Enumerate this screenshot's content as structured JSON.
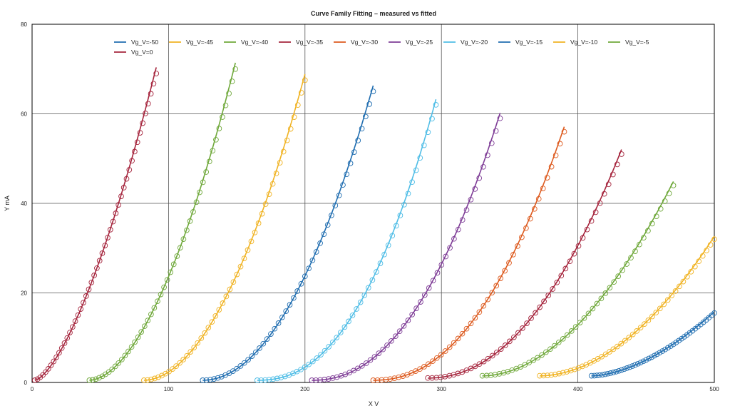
{
  "chart_data": {
    "type": "scatter",
    "title": "Curve Family Fitting – measured vs fitted",
    "xlabel": "X V",
    "ylabel": "Y mA",
    "xlim": [
      0,
      500
    ],
    "ylim": [
      0,
      80
    ],
    "x_ticks": [
      0,
      100,
      200,
      300,
      400,
      500
    ],
    "y_ticks": [
      0,
      20,
      40,
      60,
      80
    ],
    "grid": true,
    "legend_position": "top",
    "markers": "open circles = measured, lines = fitted",
    "series": [
      {
        "name": "Vg_V=-50",
        "color": "#1f6db0",
        "x_start": 410,
        "x_end": 500,
        "y_start": 1.5,
        "y_end": 15.5,
        "power": 1.7
      },
      {
        "name": "Vg_V=-45",
        "color": "#f0b323",
        "x_start": 372,
        "x_end": 500,
        "y_start": 1.5,
        "y_end": 32,
        "power": 1.9
      },
      {
        "name": "Vg_V=-40",
        "color": "#6fa83a",
        "x_start": 330,
        "x_end": 470,
        "y_start": 1.5,
        "y_end": 44,
        "power": 1.9
      },
      {
        "name": "Vg_V=-35",
        "color": "#a5243c",
        "x_start": 290,
        "x_end": 432,
        "y_start": 1.0,
        "y_end": 51,
        "power": 2.1
      },
      {
        "name": "Vg_V=-30",
        "color": "#dd5a1e",
        "x_start": 250,
        "x_end": 390,
        "y_start": 0.5,
        "y_end": 56,
        "power": 2.2
      },
      {
        "name": "Vg_V=-25",
        "color": "#7e3c96",
        "x_start": 205,
        "x_end": 343,
        "y_start": 0.5,
        "y_end": 59,
        "power": 2.2
      },
      {
        "name": "Vg_V=-20",
        "color": "#4fbde6",
        "x_start": 165,
        "x_end": 296,
        "y_start": 0.5,
        "y_end": 62,
        "power": 2.3
      },
      {
        "name": "Vg_V=-15",
        "color": "#1f6db0",
        "x_start": 125,
        "x_end": 250,
        "y_start": 0.5,
        "y_end": 65,
        "power": 2.0
      },
      {
        "name": "Vg_V=-10",
        "color": "#f0b323",
        "x_start": 82,
        "x_end": 200,
        "y_start": 0.5,
        "y_end": 67.5,
        "power": 1.9
      },
      {
        "name": "Vg_V=-5",
        "color": "#6fa83a",
        "x_start": 42,
        "x_end": 149,
        "y_start": 0.5,
        "y_end": 70,
        "power": 1.8
      },
      {
        "name": "Vg_V=0",
        "color": "#a5243c",
        "x_start": 2,
        "x_end": 91,
        "y_start": 0.5,
        "y_end": 69,
        "power": 1.5
      }
    ]
  }
}
